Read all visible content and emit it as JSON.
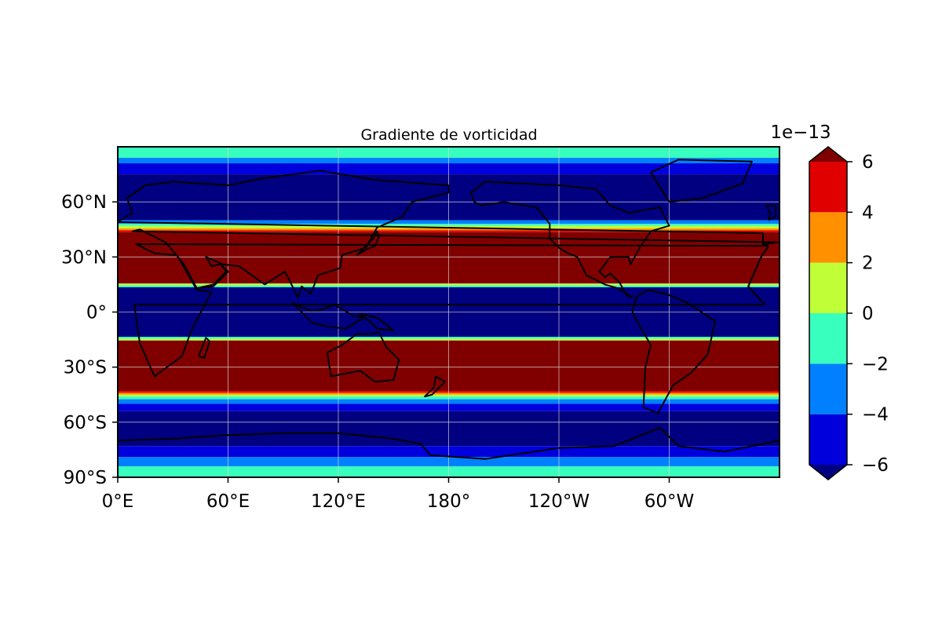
{
  "title": "Gradiente de vorticidad",
  "map": {
    "projection": "PlateCarree",
    "extent": {
      "lon_min": 0,
      "lon_max": 360,
      "lat_min": -90,
      "lat_max": 90
    },
    "xticks": [
      {
        "lon": 0,
        "label": "0°E"
      },
      {
        "lon": 60,
        "label": "60°E"
      },
      {
        "lon": 120,
        "label": "120°E"
      },
      {
        "lon": 180,
        "label": "180°"
      },
      {
        "lon": 240,
        "label": "120°W"
      },
      {
        "lon": 300,
        "label": "60°W"
      }
    ],
    "yticks": [
      {
        "lat": 60,
        "label": "60°N"
      },
      {
        "lat": 30,
        "label": "30°N"
      },
      {
        "lat": 0,
        "label": "0°"
      },
      {
        "lat": -30,
        "label": "30°S"
      },
      {
        "lat": -60,
        "label": "60°S"
      },
      {
        "lat": -90,
        "label": "90°S"
      }
    ],
    "gridlines": true,
    "gridline_color": "#dddddd",
    "coastlines": true
  },
  "colorbar": {
    "multiplier": "1e−13",
    "ticks": [
      {
        "value": 6,
        "label": "6"
      },
      {
        "value": 4,
        "label": "4"
      },
      {
        "value": 2,
        "label": "2"
      },
      {
        "value": 0,
        "label": "0"
      },
      {
        "value": -2,
        "label": "−2"
      },
      {
        "value": -4,
        "label": "−4"
      },
      {
        "value": -6,
        "label": "−6"
      }
    ],
    "levels": [
      -6,
      -4,
      -2,
      0,
      2,
      4,
      6
    ],
    "colors": [
      "#0000dd",
      "#0080ff",
      "#38ffbe",
      "#c0ff38",
      "#ff9000",
      "#e00000"
    ],
    "extend_min_color": "#000080",
    "extend_max_color": "#800000",
    "extend": "both"
  },
  "chart_data": {
    "type": "heatmap",
    "title": "Gradiente de vorticidad",
    "variable_scale": "1e−13",
    "lat_bands": [
      {
        "lat_top": 90,
        "lat_bot": 84,
        "value_bin": "-2 to 0",
        "color": "#38ffbe"
      },
      {
        "lat_top": 84,
        "lat_bot": 81,
        "value_bin": "-4 to -2",
        "color": "#0080ff"
      },
      {
        "lat_top": 81,
        "lat_bot": 75,
        "value_bin": "-6 to -4",
        "color": "#0000dd"
      },
      {
        "lat_top": 75,
        "lat_bot": 50,
        "value_bin": "< -6",
        "color": "#000080"
      },
      {
        "lat_top": 50,
        "lat_bot": 48,
        "value_bin": "-4 to -2",
        "color": "#0080ff"
      },
      {
        "lat_top": 48,
        "lat_bot": 47,
        "value_bin": "-2 to 0",
        "color": "#38ffbe"
      },
      {
        "lat_top": 47,
        "lat_bot": 45.5,
        "value_bin": "0 to 2",
        "color": "#c0ff38"
      },
      {
        "lat_top": 45.5,
        "lat_bot": 44.5,
        "value_bin": "2 to 4",
        "color": "#ff9000"
      },
      {
        "lat_top": 44.5,
        "lat_bot": 43.5,
        "value_bin": "4 to 6",
        "color": "#e00000"
      },
      {
        "lat_top": 43.5,
        "lat_bot": 15.5,
        "value_bin": "> 6",
        "color": "#800000"
      },
      {
        "lat_top": 15.5,
        "lat_bot": 14.5,
        "value_bin": "0 to 2",
        "color": "#c0ff38"
      },
      {
        "lat_top": 14.5,
        "lat_bot": 13.5,
        "value_bin": "-2 to 0",
        "color": "#38ffbe"
      },
      {
        "lat_top": 13.5,
        "lat_bot": -13.5,
        "value_bin": "< -6",
        "color": "#000080"
      },
      {
        "lat_top": -13.5,
        "lat_bot": -14.5,
        "value_bin": "-2 to 0",
        "color": "#38ffbe"
      },
      {
        "lat_top": -14.5,
        "lat_bot": -15.5,
        "value_bin": "0 to 2",
        "color": "#c0ff38"
      },
      {
        "lat_top": -15.5,
        "lat_bot": -43,
        "value_bin": "> 6",
        "color": "#800000"
      },
      {
        "lat_top": -43,
        "lat_bot": -44,
        "value_bin": "4 to 6",
        "color": "#e00000"
      },
      {
        "lat_top": -44,
        "lat_bot": -45,
        "value_bin": "2 to 4",
        "color": "#ff9000"
      },
      {
        "lat_top": -45,
        "lat_bot": -46,
        "value_bin": "0 to 2",
        "color": "#c0ff38"
      },
      {
        "lat_top": -46,
        "lat_bot": -47.5,
        "value_bin": "-2 to 0",
        "color": "#38ffbe"
      },
      {
        "lat_top": -47.5,
        "lat_bot": -50,
        "value_bin": "-4 to -2",
        "color": "#0080ff"
      },
      {
        "lat_top": -50,
        "lat_bot": -54,
        "value_bin": "-6 to -4",
        "color": "#0000dd"
      },
      {
        "lat_top": -54,
        "lat_bot": -73,
        "value_bin": "< -6",
        "color": "#000080"
      },
      {
        "lat_top": -73,
        "lat_bot": -79,
        "value_bin": "-6 to -4",
        "color": "#0000dd"
      },
      {
        "lat_top": -79,
        "lat_bot": -84,
        "value_bin": "-4 to -2",
        "color": "#0080ff"
      },
      {
        "lat_top": -84,
        "lat_bot": -90,
        "value_bin": "-2 to 0",
        "color": "#38ffbe"
      }
    ]
  }
}
